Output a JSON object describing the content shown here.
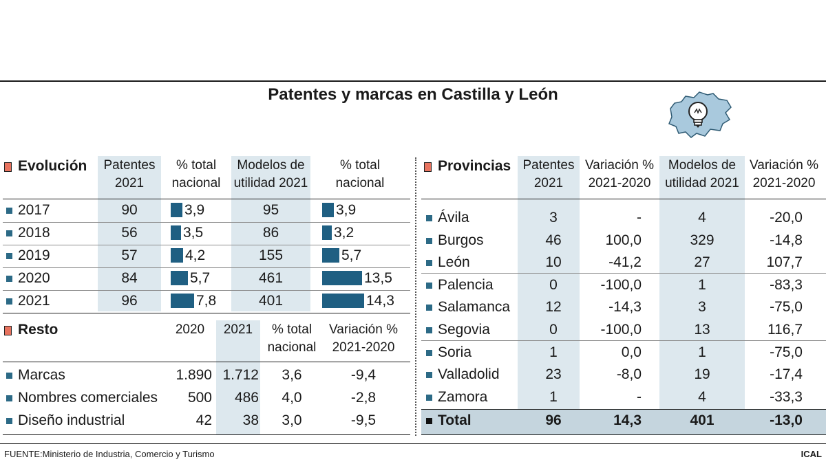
{
  "title": "Patentes y marcas en Castilla y León",
  "source": "FUENTE:Ministerio de Industria, Comercio y Turismo",
  "credit": "ICAL",
  "colors": {
    "bar": "#1f5f82",
    "shade": "#dde8ee",
    "bullet": "#2c6a86",
    "section_marker": "#e8735f",
    "total_band": "#c5d5de"
  },
  "icon": "castilla-leon-map-lightbulb-icon",
  "chart_data": [
    {
      "type": "table",
      "title": "Evolución",
      "columns": [
        "Patentes 2021",
        "% total nacional",
        "Modelos de utilidad 2021",
        "% total nacional"
      ],
      "column_lines": [
        [
          "Patentes",
          "2021"
        ],
        [
          "% total",
          "nacional"
        ],
        [
          "Modelos de",
          "utilidad 2021"
        ],
        [
          "% total",
          "nacional"
        ]
      ],
      "rows": [
        {
          "label": "2017",
          "patentes": 90,
          "pct_pat": 3.9,
          "pct_pat_label": "3,9",
          "modelos": 95,
          "pct_mod": 3.9,
          "pct_mod_label": "3,9"
        },
        {
          "label": "2018",
          "patentes": 56,
          "pct_pat": 3.5,
          "pct_pat_label": "3,5",
          "modelos": 86,
          "pct_mod": 3.2,
          "pct_mod_label": "3,2"
        },
        {
          "label": "2019",
          "patentes": 57,
          "pct_pat": 4.2,
          "pct_pat_label": "4,2",
          "modelos": 155,
          "pct_mod": 5.7,
          "pct_mod_label": "5,7"
        },
        {
          "label": "2020",
          "patentes": 84,
          "pct_pat": 5.7,
          "pct_pat_label": "5,7",
          "modelos": 461,
          "pct_mod": 13.5,
          "pct_mod_label": "13,5"
        },
        {
          "label": "2021",
          "patentes": 96,
          "pct_pat": 7.8,
          "pct_pat_label": "7,8",
          "modelos": 401,
          "pct_mod": 14.3,
          "pct_mod_label": "14,3"
        }
      ]
    },
    {
      "type": "table",
      "title": "Resto",
      "columns": [
        "2020",
        "2021",
        "% total nacional",
        "Variación % 2021-2020"
      ],
      "column_lines": [
        [
          "2020"
        ],
        [
          "2021"
        ],
        [
          "% total",
          "nacional"
        ],
        [
          "Variación %",
          "2021-2020"
        ]
      ],
      "rows": [
        {
          "label": "Marcas",
          "v2020": "1.890",
          "v2021": "1.712",
          "pct": "3,6",
          "var": "-9,4"
        },
        {
          "label": "Nombres comerciales",
          "v2020": "500",
          "v2021": "486",
          "pct": "4,0",
          "var": "-2,8"
        },
        {
          "label": "Diseño industrial",
          "v2020": "42",
          "v2021": "38",
          "pct": "3,0",
          "var": "-9,5"
        }
      ]
    },
    {
      "type": "table",
      "title": "Provincias",
      "columns": [
        "Patentes 2021",
        "Variación % 2021-2020",
        "Modelos de utilidad 2021",
        "Variación % 2021-2020"
      ],
      "column_lines": [
        [
          "Patentes",
          "2021"
        ],
        [
          "Variación %",
          "2021-2020"
        ],
        [
          "Modelos de",
          "utilidad 2021"
        ],
        [
          "Variación %",
          "2021-2020"
        ]
      ],
      "rows": [
        {
          "label": "Ávila",
          "patentes": "3",
          "var_pat": "-",
          "modelos": "4",
          "var_mod": "-20,0"
        },
        {
          "label": "Burgos",
          "patentes": "46",
          "var_pat": "100,0",
          "modelos": "329",
          "var_mod": "-14,8"
        },
        {
          "label": "León",
          "patentes": "10",
          "var_pat": "-41,2",
          "modelos": "27",
          "var_mod": "107,7"
        },
        {
          "label": "Palencia",
          "patentes": "0",
          "var_pat": "-100,0",
          "modelos": "1",
          "var_mod": "-83,3"
        },
        {
          "label": "Salamanca",
          "patentes": "12",
          "var_pat": "-14,3",
          "modelos": "3",
          "var_mod": "-75,0"
        },
        {
          "label": "Segovia",
          "patentes": "0",
          "var_pat": "-100,0",
          "modelos": "13",
          "var_mod": "116,7"
        },
        {
          "label": "Soria",
          "patentes": "1",
          "var_pat": "0,0",
          "modelos": "1",
          "var_mod": "-75,0"
        },
        {
          "label": "Valladolid",
          "patentes": "23",
          "var_pat": "-8,0",
          "modelos": "19",
          "var_mod": "-17,4"
        },
        {
          "label": "Zamora",
          "patentes": "1",
          "var_pat": "-",
          "modelos": "4",
          "var_mod": "-33,3"
        }
      ],
      "total": {
        "label": "Total",
        "patentes": "96",
        "var_pat": "14,3",
        "modelos": "401",
        "var_mod": "-13,0"
      }
    }
  ]
}
